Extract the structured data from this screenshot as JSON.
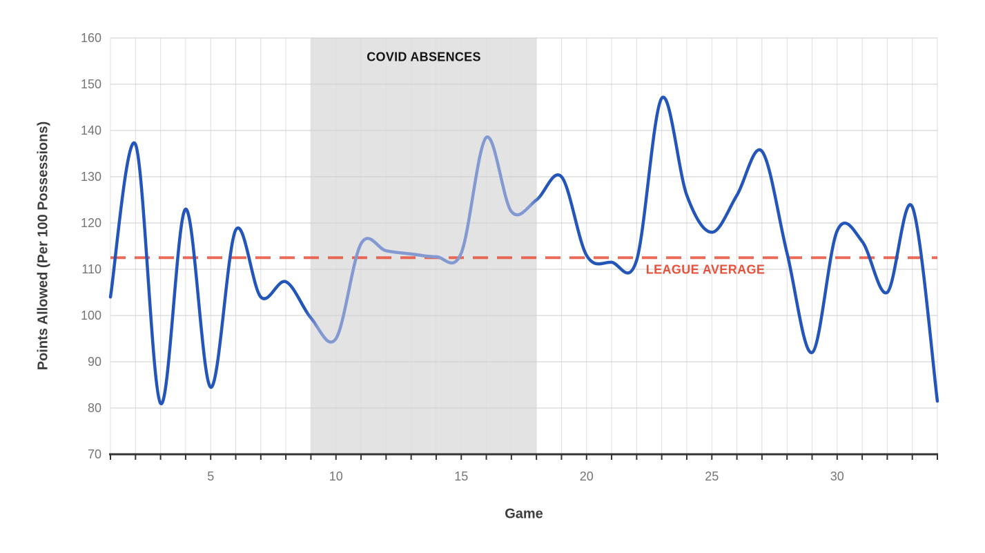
{
  "chart_data": {
    "type": "line",
    "title": "",
    "xlabel": "Game",
    "ylabel": "Points Allowed (Per 100 Possessions)",
    "x": [
      1,
      2,
      3,
      4,
      5,
      6,
      7,
      8,
      9,
      10,
      11,
      12,
      13,
      14,
      15,
      16,
      17,
      18,
      19,
      20,
      21,
      22,
      23,
      24,
      25,
      26,
      27,
      28,
      29,
      30,
      31,
      32,
      33,
      34
    ],
    "series": [
      {
        "name": "points-allowed-per-100-possessions",
        "values": [
          104,
          137,
          81,
          123,
          84.5,
          118.5,
          104,
          107.3,
          99.5,
          95,
          115.5,
          114,
          113.3,
          112.7,
          113.5,
          138.5,
          122.5,
          125,
          130,
          113,
          111.5,
          112,
          147,
          126,
          118,
          126,
          135.5,
          113.5,
          92,
          118.3,
          116,
          105,
          123.5,
          81.5
        ]
      }
    ],
    "xlim": [
      1,
      34
    ],
    "ylim": [
      70,
      160
    ],
    "yticks": [
      70,
      80,
      90,
      100,
      110,
      120,
      130,
      140,
      150,
      160
    ],
    "xticks": [
      5,
      10,
      15,
      20,
      25,
      30
    ],
    "grid": true,
    "legend": false,
    "annotations": {
      "covid_band": {
        "label": "COVID ABSENCES",
        "from_game": 9,
        "to_game": 18,
        "color": "#e3e3e3"
      },
      "league_average": {
        "label": "LEAGUE AVERAGE",
        "value": 112.5,
        "style": "dashed",
        "color": "#e8513b"
      }
    },
    "colors": {
      "line": "#2356b8",
      "line_in_band": "#8399d1",
      "average_line": "#e8513b",
      "band": "#e3e3e3",
      "vgrid": "#dedede",
      "hgrid": "#cccccc",
      "axis": "#333333",
      "tick_labels": "#757575",
      "axis_titles": "#3d3d3d"
    }
  }
}
